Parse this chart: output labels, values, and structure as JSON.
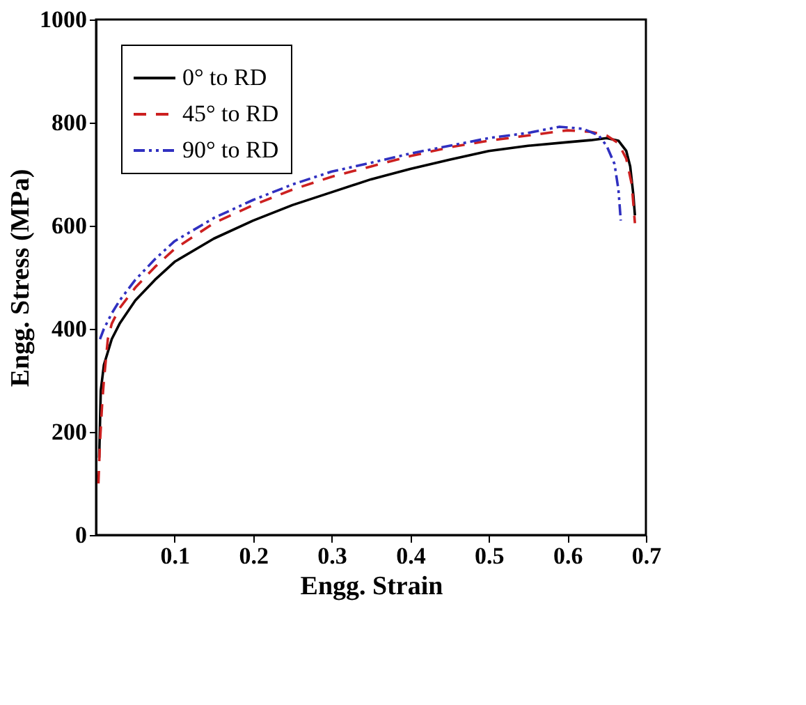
{
  "chart_data": {
    "type": "line",
    "xlabel": "Engg. Strain",
    "ylabel": "Engg. Stress (MPa)",
    "xlim": [
      0,
      0.7
    ],
    "xticks": [
      0.1,
      0.2,
      0.3,
      0.4,
      0.5,
      0.6,
      0.7
    ],
    "ylim": [
      0,
      1000
    ],
    "yticks": [
      0,
      200,
      400,
      600,
      800,
      {
        "value": 1000,
        "label": "1000"
      }
    ],
    "grid": false,
    "legend": "top left",
    "series": [
      {
        "name": "0° to RD",
        "color": "#000000",
        "line_style": "solid",
        "x": [
          0.004,
          0.006,
          0.01,
          0.02,
          0.03,
          0.05,
          0.075,
          0.1,
          0.15,
          0.2,
          0.25,
          0.3,
          0.35,
          0.4,
          0.45,
          0.5,
          0.55,
          0.6,
          0.63,
          0.65,
          0.665,
          0.675,
          0.68,
          0.684,
          0.686
        ],
        "values": [
          150,
          280,
          330,
          380,
          410,
          455,
          495,
          530,
          575,
          610,
          640,
          665,
          690,
          710,
          728,
          745,
          755,
          762,
          766,
          770,
          765,
          745,
          715,
          660,
          620
        ]
      },
      {
        "name": "45° to RD",
        "color": "#cc2020",
        "line_style": "dashed",
        "x": [
          0.003,
          0.005,
          0.008,
          0.01,
          0.015,
          0.02,
          0.03,
          0.05,
          0.075,
          0.1,
          0.15,
          0.2,
          0.25,
          0.3,
          0.35,
          0.4,
          0.45,
          0.5,
          0.55,
          0.6,
          0.63,
          0.65,
          0.665,
          0.675,
          0.682,
          0.686
        ],
        "values": [
          100,
          180,
          260,
          300,
          380,
          410,
          440,
          480,
          520,
          555,
          605,
          640,
          670,
          695,
          715,
          735,
          752,
          765,
          775,
          785,
          782,
          775,
          760,
          730,
          680,
          605
        ]
      },
      {
        "name": "90° to RD",
        "color": "#3030c0",
        "line_style": "dashdot",
        "x": [
          0.005,
          0.01,
          0.02,
          0.03,
          0.05,
          0.075,
          0.1,
          0.15,
          0.2,
          0.25,
          0.3,
          0.35,
          0.4,
          0.45,
          0.5,
          0.55,
          0.59,
          0.62,
          0.64,
          0.65,
          0.66,
          0.665,
          0.668
        ],
        "values": [
          380,
          400,
          430,
          455,
          495,
          535,
          570,
          615,
          650,
          680,
          705,
          722,
          740,
          755,
          770,
          780,
          792,
          788,
          775,
          755,
          720,
          670,
          610
        ]
      }
    ]
  }
}
